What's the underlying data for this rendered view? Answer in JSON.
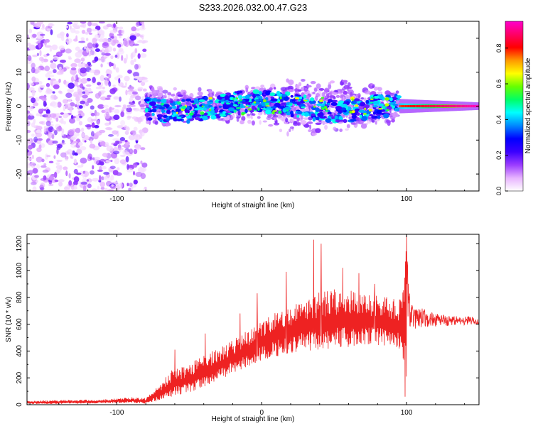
{
  "title": "S233.2026.032.00.47.G23",
  "chart_data": [
    {
      "type": "heatmap",
      "name": "spectrogram",
      "xlabel": "Height of straight line (km)",
      "ylabel": "Frequency (Hz)",
      "xlim": [
        -162,
        150
      ],
      "ylim": [
        -25,
        25
      ],
      "xticks": [
        -100,
        0,
        100
      ],
      "yticks": [
        -20,
        -10,
        0,
        10,
        20
      ],
      "colorbar": {
        "label": "Normalized spectral amplitude",
        "range": [
          0,
          0.95
        ],
        "ticks": [
          0.0,
          0.2,
          0.4,
          0.6,
          0.8
        ],
        "tick_labels": [
          "0.0",
          "0.2",
          "0.4",
          "0.6",
          "0.8"
        ],
        "colormap": [
          "#ffffff",
          "#e7b3ff",
          "#9b3cff",
          "#3b00ff",
          "#0000ff",
          "#0088ff",
          "#00ffff",
          "#00ff66",
          "#66ff00",
          "#ffff00",
          "#ff9900",
          "#ff0000",
          "#ff0066",
          "#ff00cc"
        ]
      },
      "regions": [
        {
          "x_range": [
            -162,
            -80
          ],
          "freq_range": [
            -25,
            25
          ],
          "amplitude": "0.05-0.15",
          "description": "broadband noise"
        },
        {
          "x_range": [
            -80,
            95
          ],
          "freq_center": 0,
          "freq_halfwidth": [
            5,
            9
          ],
          "amplitude": "0.1-0.6"
        },
        {
          "x_range": [
            95,
            150
          ],
          "freq_center": 0,
          "freq_halfwidth": [
            0.5,
            1.5
          ],
          "amplitude": "0.6-0.95"
        }
      ]
    },
    {
      "type": "line",
      "name": "snr",
      "xlabel": "Height of straight line (km)",
      "ylabel": "SNR (10 * v/v)",
      "xlim": [
        -162,
        150
      ],
      "ylim": [
        0,
        1270
      ],
      "xticks": [
        -100,
        0,
        100
      ],
      "yticks": [
        0,
        200,
        400,
        600,
        800,
        1000,
        1200
      ],
      "series": [
        {
          "name": "SNR",
          "color": "#ee2222",
          "envelope": {
            "x": [
              -162,
              -140,
              -110,
              -90,
              -80,
              -70,
              -62,
              -50,
              -40,
              -30,
              -20,
              -10,
              0,
              10,
              20,
              30,
              40,
              50,
              60,
              70,
              80,
              90,
              97,
              100,
              103,
              110,
              120,
              130,
              140,
              150
            ],
            "low": [
              5,
              5,
              10,
              15,
              5,
              30,
              60,
              90,
              130,
              180,
              230,
              280,
              330,
              360,
              380,
              400,
              410,
              420,
              430,
              440,
              440,
              440,
              400,
              60,
              440,
              500,
              530,
              550,
              560,
              560
            ],
            "high": [
              30,
              35,
              40,
              55,
              50,
              160,
              260,
              300,
              380,
              420,
              480,
              560,
              640,
              700,
              760,
              800,
              840,
              860,
              860,
              840,
              820,
              800,
              780,
              1270,
              760,
              720,
              680,
              660,
              660,
              650
            ]
          },
          "spikes": [
            {
              "x": -60,
              "value": 410
            },
            {
              "x": -39,
              "value": 530
            },
            {
              "x": -15,
              "value": 680
            },
            {
              "x": -3,
              "value": 830
            },
            {
              "x": 17,
              "value": 990
            },
            {
              "x": 36,
              "value": 1230
            },
            {
              "x": 41,
              "value": 1200
            },
            {
              "x": 56,
              "value": 1020
            },
            {
              "x": 67,
              "value": 980
            },
            {
              "x": 78,
              "value": 900
            },
            {
              "x": 100,
              "value": 1270
            },
            {
              "x": 99,
              "value": 60
            }
          ]
        }
      ]
    }
  ]
}
